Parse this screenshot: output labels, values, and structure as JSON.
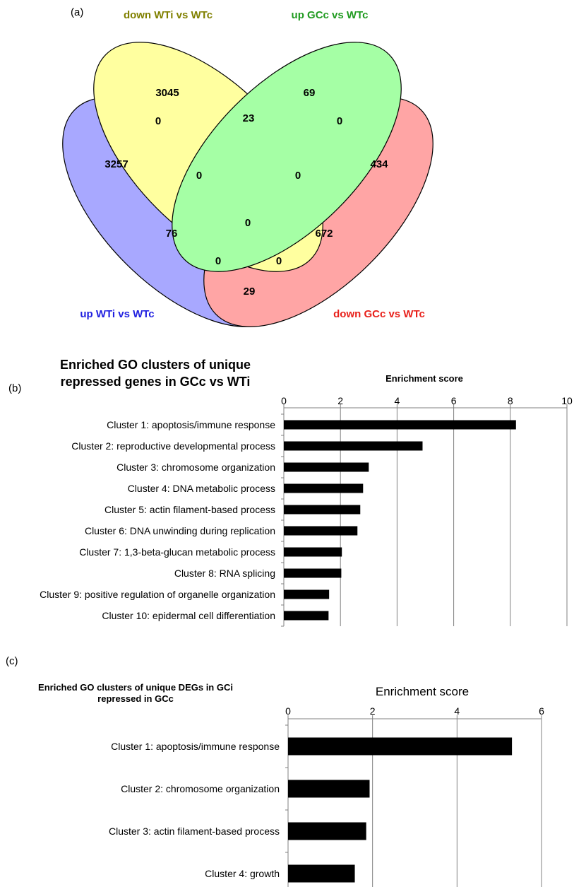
{
  "panel_a": {
    "label": "(a)",
    "sets": [
      {
        "name": "down WTi vs WTc",
        "color": "#808000"
      },
      {
        "name": "up GCc vs WTc",
        "color": "#1f9a1f"
      },
      {
        "name": "up WTi vs WTc",
        "color": "#2020e0"
      },
      {
        "name": "down GCc vs WTc",
        "color": "#e8201a"
      }
    ],
    "region_counts": {
      "yellow_only": "3045",
      "green_only": "69",
      "blue_only": "3257",
      "red_only": "434",
      "blue_yellow": "0",
      "yellow_green": "23",
      "green_red": "0",
      "blue_yellow_green": "0",
      "yellow_green_red": "0",
      "blue_green": "76",
      "all_four": "0",
      "yellow_red": "672",
      "blue_green_red": "0",
      "blue_yellow_red": "0",
      "blue_red": "29"
    }
  },
  "panel_b": {
    "label": "(b)",
    "title_line1": "Enriched GO clusters of unique",
    "title_line2": "repressed genes in GCc vs WTi",
    "axis_title": "Enrichment score"
  },
  "panel_c": {
    "label": "(c)",
    "title_line1": "Enriched GO clusters of unique DEGs in GCi",
    "title_line2": "repressed in GCc",
    "axis_title": "Enrichment score"
  },
  "chart_data": [
    {
      "type": "bar",
      "orientation": "horizontal",
      "xlabel": "Enrichment score",
      "xlim": [
        0,
        10
      ],
      "xticks": [
        0,
        2,
        4,
        6,
        8,
        10
      ],
      "grid": true,
      "bar_color": "#000000",
      "categories": [
        "Cluster 1: apoptosis/immune response",
        "Cluster 2: reproductive developmental process",
        "Cluster 3: chromosome organization",
        "Cluster 4: DNA metabolic process",
        "Cluster 5: actin filament-based process",
        "Cluster 6: DNA unwinding during replication",
        "Cluster 7: 1,3-beta-glucan metabolic process",
        "Cluster 8: RNA splicing",
        "Cluster 9: positive regulation of organelle organization",
        "Cluster 10: epidermal cell differentiation"
      ],
      "values": [
        8.2,
        4.9,
        3.0,
        2.8,
        2.7,
        2.6,
        2.05,
        2.03,
        1.6,
        1.58
      ]
    },
    {
      "type": "bar",
      "orientation": "horizontal",
      "xlabel": "Enrichment score",
      "xlim": [
        0,
        6
      ],
      "xticks": [
        0,
        2,
        4,
        6
      ],
      "grid": true,
      "bar_color": "#000000",
      "categories": [
        "Cluster 1: apoptosis/immune response",
        "Cluster 2: chromosome organization",
        "Cluster 3: actin filament-based process",
        "Cluster 4: growth"
      ],
      "values": [
        5.3,
        1.93,
        1.85,
        1.58
      ]
    }
  ]
}
